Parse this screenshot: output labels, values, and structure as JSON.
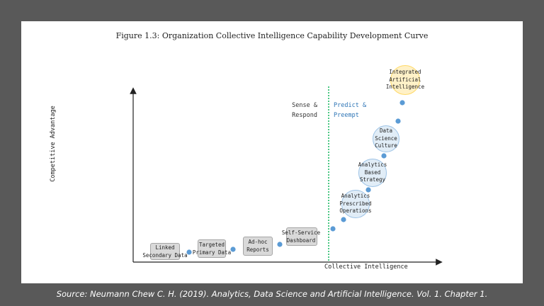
{
  "figure_title": "Figure 1.3: Organization Collective Intelligence Capability Development Curve",
  "axes": {
    "x_label": "Collective Intelligence",
    "y_label": "Competitive Advantage"
  },
  "phases": {
    "left": [
      "Sense &",
      "Respond"
    ],
    "right": [
      "Predict &",
      "Preempt"
    ]
  },
  "stages": [
    [
      "Linked",
      "Secondary Data"
    ],
    [
      "Targeted",
      "Primary Data"
    ],
    [
      "Ad-hoc",
      "Reports"
    ],
    [
      "Self-Service",
      "Dashboard"
    ],
    [
      "Analytics",
      "Prescribed",
      "Operations"
    ],
    [
      "Analytics",
      "Based",
      "Strategy"
    ],
    [
      "Data",
      "Science",
      "Culture"
    ],
    [
      "Integrated",
      "Artificial",
      "Intelligence"
    ]
  ],
  "colors": {
    "background": "#595959",
    "slide": "#ffffff",
    "dot": "#5b9bd5",
    "divider": "#00b050",
    "predict_text": "#2e75b6",
    "highlight": "#ffd966"
  },
  "source": "Source: Neumann Chew C. H. (2019). Analytics, Data Science and Artificial Intelligence. Vol. 1. Chapter 1."
}
